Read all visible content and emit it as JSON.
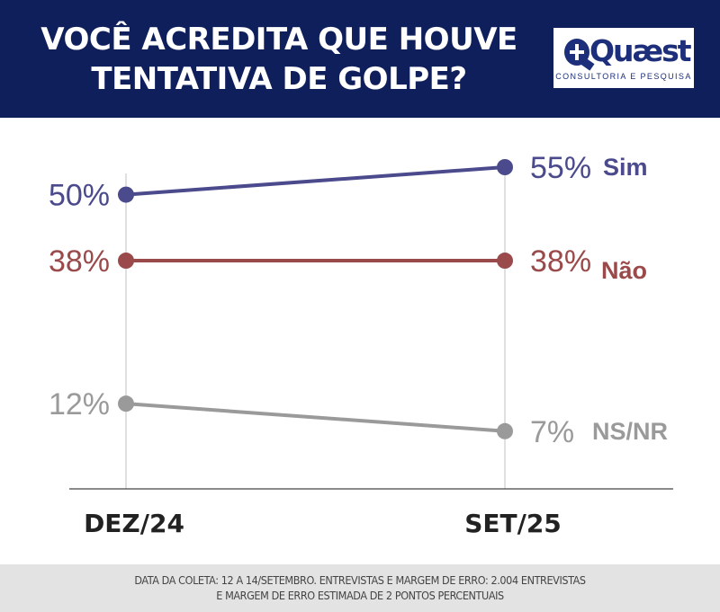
{
  "header": {
    "title_line1": "VOCÊ ACREDITA QUE HOUVE",
    "title_line2": "TENTATIVA DE GOLPE?",
    "logo_name": "Quæst",
    "logo_tagline": "CONSULTORIA E PESQUISA"
  },
  "footer": {
    "line1": "DATA DA COLETA: 12 A 14/SETEMBRO. ENTREVISTAS E MARGEM DE ERRO: 2.004 ENTREVISTAS",
    "line2": "E MARGEM DE ERRO ESTIMADA DE 2 PONTOS PERCENTUAIS"
  },
  "chart_data": {
    "type": "line",
    "categories": [
      "DEZ/24",
      "SET/25"
    ],
    "series": [
      {
        "name": "Sim",
        "values": [
          50,
          55
        ],
        "labels": [
          "50%",
          "55%"
        ],
        "color": "#4a4a8c"
      },
      {
        "name": "Não",
        "values": [
          38,
          38
        ],
        "labels": [
          "38%",
          "38%"
        ],
        "color": "#9a4a4a"
      },
      {
        "name": "NS/NR",
        "values": [
          12,
          7
        ],
        "labels": [
          "12%",
          "7%"
        ],
        "color": "#9a9a9a"
      }
    ],
    "grid": false,
    "legend": "inline-right"
  }
}
